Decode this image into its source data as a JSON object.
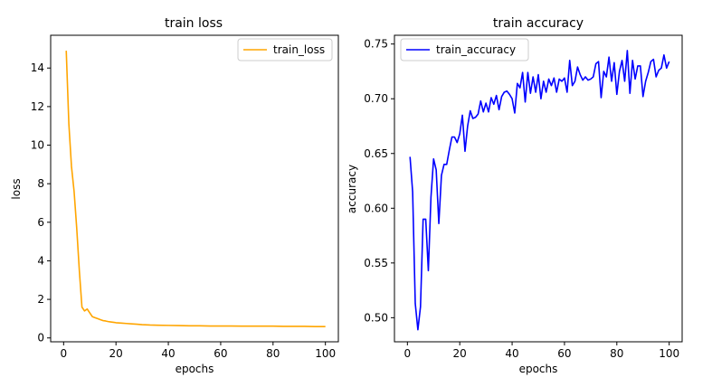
{
  "chart_data": [
    {
      "type": "line",
      "title": "train loss",
      "xlabel": "epochs",
      "ylabel": "loss",
      "xlim": [
        -4.95,
        104.95
      ],
      "ylim": [
        -0.2,
        15.7
      ],
      "xticks": [
        0,
        20,
        40,
        60,
        80,
        100
      ],
      "yticks": [
        0,
        2,
        4,
        6,
        8,
        10,
        12,
        14
      ],
      "grid": false,
      "legend": "top-right",
      "series": [
        {
          "name": "train_loss",
          "color": "#ffa500",
          "x": [
            1,
            2,
            3,
            4,
            5,
            6,
            7,
            8,
            9,
            10,
            11,
            12,
            13,
            14,
            15,
            16,
            17,
            18,
            19,
            20,
            22,
            24,
            26,
            28,
            30,
            33,
            36,
            40,
            44,
            48,
            52,
            56,
            60,
            64,
            68,
            72,
            76,
            80,
            84,
            88,
            92,
            96,
            100
          ],
          "y": [
            14.9,
            11.1,
            8.9,
            7.6,
            5.7,
            3.5,
            1.6,
            1.4,
            1.5,
            1.3,
            1.1,
            1.05,
            1.0,
            0.95,
            0.9,
            0.88,
            0.85,
            0.83,
            0.81,
            0.79,
            0.77,
            0.75,
            0.73,
            0.71,
            0.69,
            0.67,
            0.66,
            0.65,
            0.64,
            0.63,
            0.63,
            0.62,
            0.62,
            0.62,
            0.61,
            0.61,
            0.61,
            0.61,
            0.6,
            0.6,
            0.6,
            0.59,
            0.59
          ]
        }
      ]
    },
    {
      "type": "line",
      "title": "train accuracy",
      "xlabel": "epochs",
      "ylabel": "accuracy",
      "xlim": [
        -4.95,
        104.95
      ],
      "ylim": [
        0.478,
        0.758
      ],
      "xticks": [
        0,
        20,
        40,
        60,
        80,
        100
      ],
      "yticks": [
        0.5,
        0.55,
        0.6,
        0.65,
        0.7,
        0.75
      ],
      "ytick_labels": [
        "0.50",
        "0.55",
        "0.60",
        "0.65",
        "0.70",
        "0.75"
      ],
      "grid": false,
      "legend": "top-left",
      "series": [
        {
          "name": "train_accuracy",
          "color": "#0000ff",
          "x": [
            1,
            2,
            3,
            4,
            5,
            6,
            7,
            8,
            9,
            10,
            11,
            12,
            13,
            14,
            15,
            16,
            17,
            18,
            19,
            20,
            21,
            22,
            23,
            24,
            25,
            26,
            27,
            28,
            29,
            30,
            31,
            32,
            33,
            34,
            35,
            36,
            37,
            38,
            39,
            40,
            41,
            42,
            43,
            44,
            45,
            46,
            47,
            48,
            49,
            50,
            51,
            52,
            53,
            54,
            55,
            56,
            57,
            58,
            59,
            60,
            61,
            62,
            63,
            64,
            65,
            66,
            67,
            68,
            69,
            70,
            71,
            72,
            73,
            74,
            75,
            76,
            77,
            78,
            79,
            80,
            81,
            82,
            83,
            84,
            85,
            86,
            87,
            88,
            89,
            90,
            91,
            92,
            93,
            94,
            95,
            96,
            97,
            98,
            99,
            100
          ],
          "y": [
            0.647,
            0.615,
            0.513,
            0.489,
            0.51,
            0.59,
            0.59,
            0.543,
            0.61,
            0.645,
            0.635,
            0.586,
            0.63,
            0.64,
            0.64,
            0.653,
            0.665,
            0.665,
            0.66,
            0.668,
            0.685,
            0.652,
            0.675,
            0.689,
            0.682,
            0.683,
            0.686,
            0.698,
            0.688,
            0.696,
            0.688,
            0.701,
            0.695,
            0.703,
            0.69,
            0.702,
            0.706,
            0.707,
            0.704,
            0.7,
            0.687,
            0.714,
            0.71,
            0.724,
            0.697,
            0.724,
            0.705,
            0.72,
            0.706,
            0.722,
            0.7,
            0.716,
            0.706,
            0.718,
            0.712,
            0.719,
            0.706,
            0.718,
            0.716,
            0.719,
            0.706,
            0.735,
            0.712,
            0.716,
            0.729,
            0.722,
            0.717,
            0.72,
            0.717,
            0.718,
            0.72,
            0.732,
            0.734,
            0.701,
            0.725,
            0.72,
            0.738,
            0.716,
            0.733,
            0.704,
            0.725,
            0.735,
            0.716,
            0.744,
            0.705,
            0.735,
            0.718,
            0.73,
            0.73,
            0.702,
            0.716,
            0.724,
            0.734,
            0.736,
            0.72,
            0.726,
            0.728,
            0.74,
            0.728,
            0.734
          ]
        }
      ]
    }
  ]
}
